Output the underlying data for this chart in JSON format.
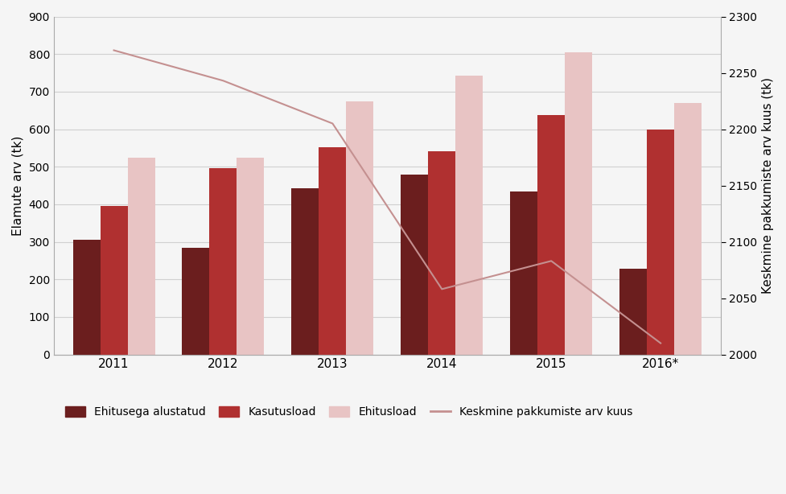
{
  "years": [
    "2011",
    "2012",
    "2013",
    "2014",
    "2015",
    "2016*"
  ],
  "ehitusega_alustatud": [
    305,
    283,
    442,
    479,
    435,
    228
  ],
  "kasutusload": [
    395,
    497,
    551,
    542,
    637,
    600
  ],
  "ehitusload": [
    525,
    525,
    675,
    743,
    805,
    670
  ],
  "keskmine_pakkumiste": [
    2270,
    2243,
    2205,
    2058,
    2083,
    2010
  ],
  "bar_color_alustatud": "#6b1e1e",
  "bar_color_kasutus": "#b03030",
  "bar_color_ehitus": "#e8c4c4",
  "line_color": "#c49090",
  "ylabel_left": "Elamute arv (tk)",
  "ylabel_right": "Keskmine pakkumiste arv kuus (tk)",
  "ylim_left": [
    0,
    900
  ],
  "ylim_right": [
    2000,
    2300
  ],
  "yticks_left": [
    0,
    100,
    200,
    300,
    400,
    500,
    600,
    700,
    800,
    900
  ],
  "yticks_right": [
    2000,
    2050,
    2100,
    2150,
    2200,
    2250,
    2300
  ],
  "legend_labels": [
    "Ehitusega alustatud",
    "Kasutusload",
    "Ehitusload",
    "Keskmine pakkumiste arv kuus"
  ],
  "background_color": "#f5f5f5",
  "plot_bg_color": "#f5f5f5",
  "grid_color": "#d0d0d0",
  "spine_color": "#aaaaaa"
}
